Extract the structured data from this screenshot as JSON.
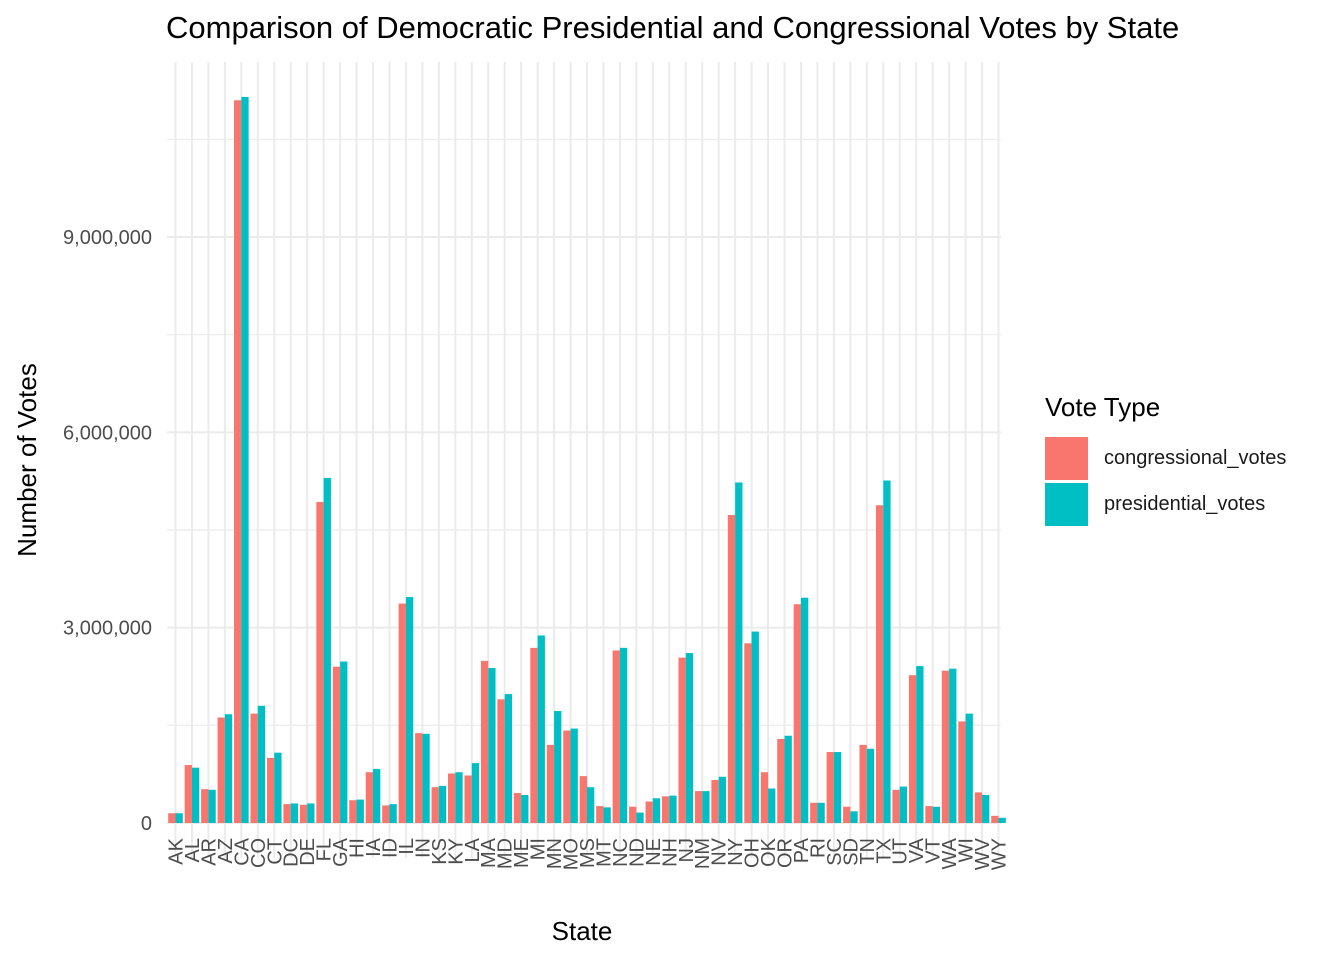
{
  "chart_data": {
    "type": "bar",
    "title": "Comparison of Democratic Presidential and Congressional Votes by State",
    "xlabel": "State",
    "ylabel": "Number of Votes",
    "ylim": [
      0,
      12000000
    ],
    "yticks": [
      0,
      3000000,
      6000000,
      9000000
    ],
    "ytick_labels": [
      "0",
      "3,000,000",
      "6,000,000",
      "9,000,000"
    ],
    "grid": true,
    "legend": {
      "title": "Vote Type",
      "position": "right"
    },
    "categories": [
      "AK",
      "AL",
      "AR",
      "AZ",
      "CA",
      "CO",
      "CT",
      "DC",
      "DE",
      "FL",
      "GA",
      "HI",
      "IA",
      "ID",
      "IL",
      "IN",
      "KS",
      "KY",
      "LA",
      "MA",
      "MD",
      "ME",
      "MI",
      "MN",
      "MO",
      "MS",
      "MT",
      "NC",
      "ND",
      "NE",
      "NH",
      "NJ",
      "NM",
      "NV",
      "NY",
      "OH",
      "OK",
      "OR",
      "PA",
      "RI",
      "SC",
      "SD",
      "TN",
      "TX",
      "UT",
      "VA",
      "VT",
      "WA",
      "WI",
      "WV",
      "WY"
    ],
    "series": [
      {
        "name": "congressional_votes",
        "color": "#F8766D",
        "values": [
          150000,
          890000,
          520000,
          1620000,
          11100000,
          1680000,
          1000000,
          290000,
          280000,
          4930000,
          2400000,
          350000,
          780000,
          270000,
          3370000,
          1380000,
          550000,
          760000,
          730000,
          2490000,
          1900000,
          460000,
          2690000,
          1200000,
          1420000,
          720000,
          260000,
          2650000,
          250000,
          330000,
          410000,
          2540000,
          490000,
          660000,
          4730000,
          2760000,
          780000,
          1290000,
          3360000,
          310000,
          1090000,
          250000,
          1200000,
          4880000,
          510000,
          2270000,
          260000,
          2340000,
          1560000,
          470000,
          110000
        ]
      },
      {
        "name": "presidential_votes",
        "color": "#00BFC4",
        "values": [
          150000,
          850000,
          510000,
          1670000,
          11150000,
          1800000,
          1080000,
          300000,
          300000,
          5300000,
          2480000,
          360000,
          830000,
          290000,
          3470000,
          1370000,
          570000,
          780000,
          920000,
          2380000,
          1980000,
          430000,
          2880000,
          1720000,
          1450000,
          550000,
          240000,
          2690000,
          160000,
          380000,
          420000,
          2610000,
          490000,
          710000,
          5230000,
          2940000,
          530000,
          1340000,
          3460000,
          310000,
          1090000,
          180000,
          1140000,
          5260000,
          560000,
          2410000,
          250000,
          2370000,
          1680000,
          430000,
          80000
        ]
      }
    ]
  }
}
